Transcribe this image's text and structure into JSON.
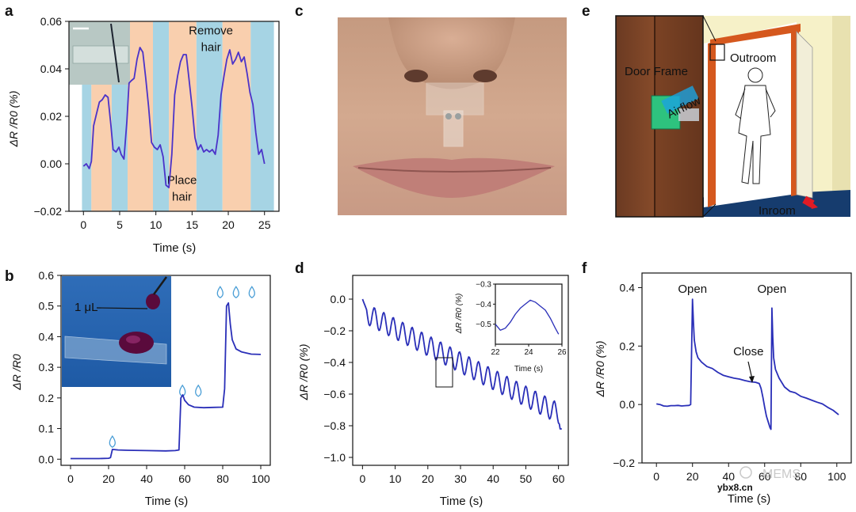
{
  "panels": {
    "a": {
      "letter": "a"
    },
    "b": {
      "letter": "b"
    },
    "c": {
      "letter": "c"
    },
    "d": {
      "letter": "d"
    },
    "e": {
      "letter": "e"
    },
    "f": {
      "letter": "f"
    }
  },
  "photo_c": {
    "caption": ""
  },
  "door_photo": {
    "labels": {
      "door_frame": "Door Frame",
      "airflow": "Airflow",
      "outroom": "Outroom",
      "inroom": "Inroom"
    }
  },
  "inset_b": {
    "volume_label": "1 μL"
  },
  "watermark": {
    "brand": "MEMS",
    "site": "ybx8.cn"
  },
  "colors": {
    "series": "#2a2fb8",
    "series_a": "#4b33c9",
    "band_blue": "#a6d4e4",
    "band_orange": "#f9cfae"
  },
  "chart_data": [
    {
      "id": "a",
      "type": "line",
      "title": "",
      "xlabel": "Time (s)",
      "ylabel": "ΔR /R0 (%)",
      "xlim": [
        -2,
        27
      ],
      "ylim": [
        -0.02,
        0.06
      ],
      "xticks": [
        0,
        5,
        10,
        15,
        20,
        25
      ],
      "yticks": [
        -0.02,
        0.0,
        0.02,
        0.04,
        0.06
      ],
      "ytick_labels": [
        "−0.02",
        "0.00",
        "0.02",
        "0.04",
        "0.06"
      ],
      "bands": [
        {
          "from": -0.2,
          "to": 1.1,
          "state": "place"
        },
        {
          "from": 1.1,
          "to": 3.9,
          "state": "remove"
        },
        {
          "from": 3.9,
          "to": 6.1,
          "state": "place"
        },
        {
          "from": 6.1,
          "to": 9.6,
          "state": "remove"
        },
        {
          "from": 9.6,
          "to": 11.8,
          "state": "place"
        },
        {
          "from": 11.8,
          "to": 15.6,
          "state": "remove"
        },
        {
          "from": 15.6,
          "to": 19.2,
          "state": "place"
        },
        {
          "from": 19.2,
          "to": 23.1,
          "state": "remove"
        },
        {
          "from": 23.1,
          "to": 26.3,
          "state": "place"
        }
      ],
      "annotations": [
        {
          "text": "Remove",
          "x": 17.6,
          "y": 0.0545
        },
        {
          "text": "hair",
          "x": 17.6,
          "y": 0.0475
        },
        {
          "text": "Place",
          "x": 13.6,
          "y": -0.0085
        },
        {
          "text": "hair",
          "x": 13.6,
          "y": -0.0155
        }
      ],
      "x": [
        0,
        0.4,
        0.8,
        1.1,
        1.4,
        1.8,
        2.2,
        2.6,
        3.0,
        3.4,
        3.8,
        4.1,
        4.5,
        4.9,
        5.2,
        5.6,
        6.0,
        6.3,
        6.6,
        7.0,
        7.4,
        7.8,
        8.2,
        8.6,
        9.0,
        9.4,
        9.8,
        10.2,
        10.6,
        11.0,
        11.4,
        11.8,
        12.2,
        12.6,
        13.0,
        13.4,
        13.8,
        14.2,
        14.6,
        15.0,
        15.4,
        15.8,
        16.2,
        16.6,
        17.0,
        17.4,
        17.8,
        18.2,
        18.6,
        19.0,
        19.4,
        19.8,
        20.2,
        20.6,
        21.0,
        21.4,
        21.8,
        22.2,
        22.6,
        23.0,
        23.4,
        23.8,
        24.2,
        24.6,
        25.0
      ],
      "values": [
        -0.001,
        0.0,
        -0.002,
        0.001,
        0.016,
        0.021,
        0.026,
        0.027,
        0.029,
        0.028,
        0.016,
        0.006,
        0.005,
        0.007,
        0.004,
        0.002,
        0.018,
        0.034,
        0.035,
        0.036,
        0.044,
        0.049,
        0.047,
        0.036,
        0.024,
        0.009,
        0.007,
        0.006,
        0.008,
        0.003,
        -0.009,
        -0.01,
        0.004,
        0.029,
        0.037,
        0.043,
        0.046,
        0.046,
        0.035,
        0.024,
        0.011,
        0.006,
        0.008,
        0.005,
        0.006,
        0.005,
        0.006,
        0.004,
        0.012,
        0.029,
        0.037,
        0.044,
        0.048,
        0.042,
        0.044,
        0.047,
        0.043,
        0.045,
        0.038,
        0.03,
        0.025,
        0.013,
        0.004,
        0.006,
        0.0
      ]
    },
    {
      "id": "b",
      "type": "line",
      "title": "",
      "xlabel": "Time (s)",
      "ylabel": "ΔR /R0",
      "xlim": [
        -5,
        105
      ],
      "ylim": [
        -0.02,
        0.6
      ],
      "xticks": [
        0,
        20,
        40,
        60,
        80,
        100
      ],
      "yticks": [
        0.0,
        0.1,
        0.2,
        0.3,
        0.4,
        0.5,
        0.6
      ],
      "ytick_labels": [
        "0.0",
        "0.1",
        "0.2",
        "0.3",
        "0.4",
        "0.5",
        "0.6"
      ],
      "droplets": [
        {
          "x": 22,
          "y": 0.052,
          "count": 1
        },
        {
          "x": 63,
          "y": 0.218,
          "count": 2
        },
        {
          "x": 87,
          "y": 0.54,
          "count": 3
        }
      ],
      "x": [
        0,
        5,
        10,
        15,
        20,
        21,
        22,
        25,
        30,
        40,
        50,
        55,
        57,
        58,
        59,
        60,
        62,
        65,
        70,
        75,
        80,
        81,
        82,
        83,
        84,
        85,
        87,
        90,
        95,
        100
      ],
      "values": [
        0.002,
        0.002,
        0.002,
        0.002,
        0.003,
        0.005,
        0.032,
        0.03,
        0.029,
        0.028,
        0.027,
        0.028,
        0.03,
        0.2,
        0.21,
        0.192,
        0.178,
        0.17,
        0.168,
        0.169,
        0.17,
        0.23,
        0.5,
        0.51,
        0.44,
        0.39,
        0.36,
        0.35,
        0.343,
        0.342
      ]
    },
    {
      "id": "d",
      "type": "line",
      "title": "",
      "xlabel": "Time (s)",
      "ylabel": "ΔR /R0 (%)",
      "xlim": [
        -3,
        63
      ],
      "ylim": [
        -1.05,
        0.15
      ],
      "xticks": [
        0,
        10,
        20,
        30,
        40,
        50,
        60
      ],
      "yticks": [
        0.0,
        -0.2,
        -0.4,
        -0.6,
        -0.8,
        -1.0
      ],
      "ytick_labels": [
        "0.0",
        "−0.2",
        "−0.4",
        "−0.6",
        "−0.8",
        "−1.0"
      ],
      "trend": {
        "start": -0.08,
        "slope": -0.0107,
        "amplitude": 0.065,
        "period_s": 2.9
      },
      "inset": {
        "xlabel": "Time (s)",
        "ylabel": "ΔR /R0 (%)",
        "xlim": [
          22,
          26
        ],
        "ylim": [
          -0.6,
          -0.3
        ],
        "xticks": [
          22,
          24,
          26
        ],
        "yticks": [
          -0.3,
          -0.4,
          -0.5
        ],
        "ytick_labels": [
          "−0.3",
          "−0.4",
          "−0.5"
        ],
        "x": [
          22.0,
          22.3,
          22.6,
          22.9,
          23.2,
          23.5,
          23.8,
          24.1,
          24.4,
          24.7,
          25.0,
          25.3,
          25.6,
          25.8
        ],
        "values": [
          -0.5,
          -0.53,
          -0.52,
          -0.49,
          -0.45,
          -0.42,
          -0.4,
          -0.38,
          -0.39,
          -0.41,
          -0.43,
          -0.47,
          -0.52,
          -0.55
        ]
      }
    },
    {
      "id": "f",
      "type": "line",
      "title": "",
      "xlabel": "Time (s)",
      "ylabel": "ΔR /R0 (%)",
      "xlim": [
        -8,
        108
      ],
      "ylim": [
        -0.2,
        0.45
      ],
      "xticks": [
        0,
        20,
        40,
        60,
        80,
        100
      ],
      "yticks": [
        0.4,
        0.2,
        0.0,
        -0.2
      ],
      "ytick_labels": [
        "0.4",
        "0.2",
        "0.0",
        "−0.2"
      ],
      "annotations": [
        {
          "text": "Open",
          "x": 20,
          "y": 0.382
        },
        {
          "text": "Open",
          "x": 64,
          "y": 0.382
        },
        {
          "text": "Close",
          "x": 51,
          "y": 0.168
        }
      ],
      "x": [
        0,
        2,
        4,
        6,
        8,
        10,
        12,
        14,
        16,
        18,
        19,
        20,
        20.5,
        21,
        22,
        23,
        25,
        28,
        31,
        34,
        37,
        40,
        43,
        46,
        49,
        52,
        55,
        57,
        58,
        59,
        60,
        61,
        62,
        63,
        63.5,
        64,
        64.5,
        65,
        66,
        68,
        71,
        74,
        77,
        80,
        83,
        86,
        89,
        92,
        95,
        98,
        101
      ],
      "values": [
        0.002,
        0.0,
        -0.005,
        -0.006,
        -0.004,
        -0.004,
        -0.003,
        -0.005,
        -0.004,
        -0.003,
        0.0,
        0.36,
        0.28,
        0.22,
        0.18,
        0.16,
        0.145,
        0.13,
        0.123,
        0.11,
        0.1,
        0.095,
        0.09,
        0.087,
        0.082,
        0.078,
        0.076,
        0.072,
        0.055,
        0.025,
        -0.01,
        -0.04,
        -0.06,
        -0.08,
        -0.085,
        0.33,
        0.23,
        0.16,
        0.12,
        0.09,
        0.06,
        0.045,
        0.04,
        0.028,
        0.022,
        0.015,
        0.008,
        0.002,
        -0.01,
        -0.02,
        -0.035
      ]
    }
  ]
}
